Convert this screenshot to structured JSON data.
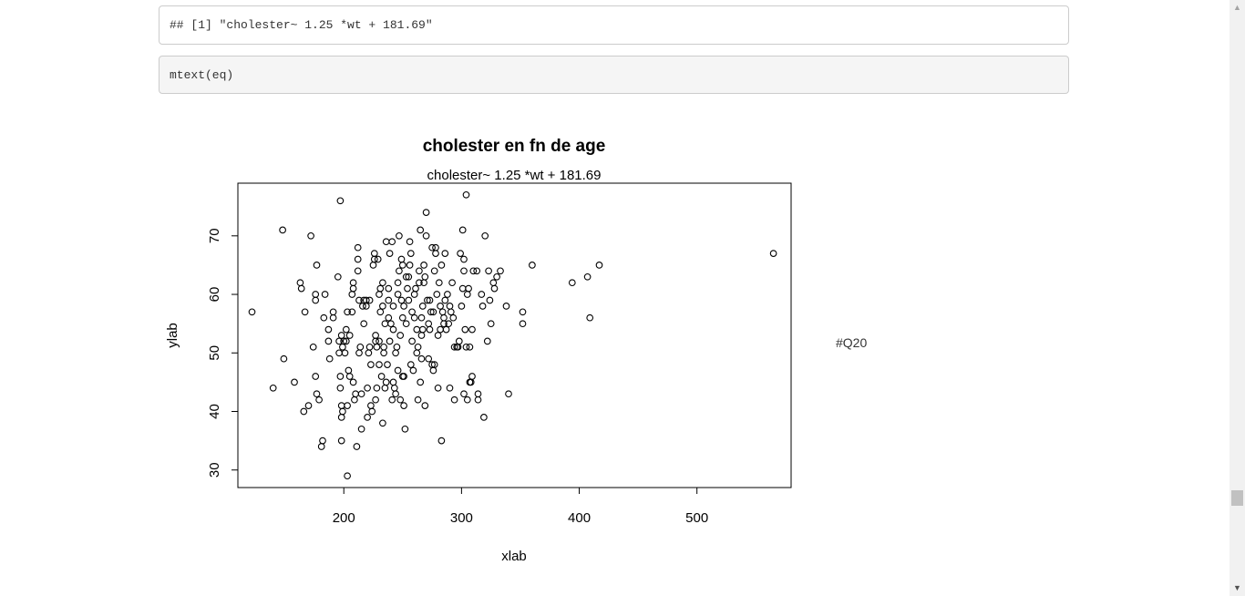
{
  "output_line": "## [1] \"cholester~ 1.25 *wt + 181.69\"",
  "code_line": "mtext(eq)",
  "side_note": "#Q20",
  "chart_data": {
    "type": "scatter",
    "title": "cholester en fn de age",
    "subtitle": "cholester~ 1.25 *wt + 181.69",
    "xlabel": "xlab",
    "ylabel": "ylab",
    "xlim": [
      110,
      580
    ],
    "ylim": [
      27,
      79
    ],
    "x_ticks": [
      200,
      300,
      400,
      500
    ],
    "y_ticks": [
      30,
      40,
      50,
      60,
      70
    ],
    "grid": false,
    "points": [
      [
        122,
        57
      ],
      [
        140,
        44
      ],
      [
        148,
        71
      ],
      [
        149,
        49
      ],
      [
        158,
        45
      ],
      [
        163,
        62
      ],
      [
        164,
        61
      ],
      [
        167,
        57
      ],
      [
        166,
        40
      ],
      [
        170,
        41
      ],
      [
        172,
        70
      ],
      [
        174,
        51
      ],
      [
        176,
        60
      ],
      [
        176,
        59
      ],
      [
        177,
        65
      ],
      [
        176,
        46
      ],
      [
        177,
        43
      ],
      [
        179,
        42
      ],
      [
        183,
        56
      ],
      [
        184,
        60
      ],
      [
        182,
        35
      ],
      [
        181,
        34
      ],
      [
        187,
        52
      ],
      [
        187,
        54
      ],
      [
        188,
        49
      ],
      [
        191,
        57
      ],
      [
        191,
        56
      ],
      [
        195,
        63
      ],
      [
        196,
        52
      ],
      [
        196,
        50
      ],
      [
        197,
        46
      ],
      [
        197,
        76
      ],
      [
        197,
        44
      ],
      [
        198,
        53
      ],
      [
        198,
        41
      ],
      [
        198,
        39
      ],
      [
        199,
        40
      ],
      [
        198,
        35
      ],
      [
        199,
        51
      ],
      [
        200,
        52
      ],
      [
        202,
        52
      ],
      [
        201,
        50
      ],
      [
        202,
        54
      ],
      [
        203,
        41
      ],
      [
        203,
        57
      ],
      [
        203,
        29
      ],
      [
        204,
        47
      ],
      [
        205,
        46
      ],
      [
        205,
        53
      ],
      [
        207,
        57
      ],
      [
        207,
        60
      ],
      [
        208,
        62
      ],
      [
        208,
        61
      ],
      [
        208,
        45
      ],
      [
        209,
        42
      ],
      [
        210,
        43
      ],
      [
        211,
        34
      ],
      [
        212,
        68
      ],
      [
        212,
        66
      ],
      [
        212,
        64
      ],
      [
        213,
        59
      ],
      [
        213,
        50
      ],
      [
        214,
        51
      ],
      [
        215,
        43
      ],
      [
        215,
        37
      ],
      [
        216,
        58
      ],
      [
        217,
        55
      ],
      [
        217,
        59
      ],
      [
        219,
        58
      ],
      [
        219,
        59
      ],
      [
        220,
        44
      ],
      [
        220,
        39
      ],
      [
        221,
        50
      ],
      [
        222,
        59
      ],
      [
        222,
        51
      ],
      [
        223,
        48
      ],
      [
        223,
        41
      ],
      [
        224,
        40
      ],
      [
        225,
        65
      ],
      [
        226,
        66
      ],
      [
        226,
        67
      ],
      [
        227,
        52
      ],
      [
        227,
        53
      ],
      [
        227,
        42
      ],
      [
        228,
        51
      ],
      [
        228,
        44
      ],
      [
        229,
        66
      ],
      [
        230,
        60
      ],
      [
        230,
        52
      ],
      [
        230,
        48
      ],
      [
        231,
        57
      ],
      [
        231,
        61
      ],
      [
        232,
        46
      ],
      [
        233,
        62
      ],
      [
        233,
        58
      ],
      [
        233,
        38
      ],
      [
        234,
        51
      ],
      [
        234,
        50
      ],
      [
        235,
        44
      ],
      [
        235,
        55
      ],
      [
        236,
        69
      ],
      [
        236,
        45
      ],
      [
        237,
        48
      ],
      [
        238,
        56
      ],
      [
        238,
        61
      ],
      [
        238,
        59
      ],
      [
        239,
        67
      ],
      [
        239,
        52
      ],
      [
        240,
        55
      ],
      [
        241,
        42
      ],
      [
        241,
        69
      ],
      [
        242,
        58
      ],
      [
        242,
        54
      ],
      [
        242,
        45
      ],
      [
        243,
        44
      ],
      [
        244,
        50
      ],
      [
        244,
        43
      ],
      [
        245,
        51
      ],
      [
        246,
        47
      ],
      [
        246,
        62
      ],
      [
        246,
        60
      ],
      [
        247,
        70
      ],
      [
        247,
        64
      ],
      [
        248,
        53
      ],
      [
        248,
        42
      ],
      [
        249,
        66
      ],
      [
        249,
        59
      ],
      [
        250,
        65
      ],
      [
        250,
        56
      ],
      [
        250,
        46
      ],
      [
        251,
        46
      ],
      [
        251,
        41
      ],
      [
        251,
        58
      ],
      [
        252,
        37
      ],
      [
        253,
        55
      ],
      [
        253,
        63
      ],
      [
        254,
        61
      ],
      [
        255,
        59
      ],
      [
        255,
        63
      ],
      [
        256,
        69
      ],
      [
        256,
        65
      ],
      [
        257,
        48
      ],
      [
        257,
        67
      ],
      [
        258,
        57
      ],
      [
        258,
        52
      ],
      [
        259,
        47
      ],
      [
        260,
        60
      ],
      [
        260,
        56
      ],
      [
        261,
        61
      ],
      [
        262,
        54
      ],
      [
        262,
        50
      ],
      [
        263,
        51
      ],
      [
        263,
        42
      ],
      [
        264,
        64
      ],
      [
        264,
        62
      ],
      [
        265,
        45
      ],
      [
        265,
        71
      ],
      [
        266,
        56
      ],
      [
        266,
        53
      ],
      [
        266,
        49
      ],
      [
        267,
        58
      ],
      [
        267,
        54
      ],
      [
        268,
        62
      ],
      [
        268,
        65
      ],
      [
        269,
        63
      ],
      [
        269,
        41
      ],
      [
        270,
        70
      ],
      [
        270,
        74
      ],
      [
        271,
        59
      ],
      [
        272,
        55
      ],
      [
        272,
        49
      ],
      [
        273,
        59
      ],
      [
        273,
        54
      ],
      [
        274,
        57
      ],
      [
        275,
        68
      ],
      [
        275,
        48
      ],
      [
        276,
        47
      ],
      [
        276,
        57
      ],
      [
        277,
        48
      ],
      [
        277,
        64
      ],
      [
        278,
        67
      ],
      [
        278,
        68
      ],
      [
        279,
        60
      ],
      [
        280,
        53
      ],
      [
        280,
        44
      ],
      [
        281,
        62
      ],
      [
        282,
        58
      ],
      [
        282,
        54
      ],
      [
        283,
        35
      ],
      [
        283,
        65
      ],
      [
        284,
        57
      ],
      [
        285,
        56
      ],
      [
        285,
        55
      ],
      [
        286,
        67
      ],
      [
        286,
        59
      ],
      [
        287,
        54
      ],
      [
        288,
        60
      ],
      [
        289,
        55
      ],
      [
        290,
        44
      ],
      [
        290,
        58
      ],
      [
        291,
        57
      ],
      [
        292,
        62
      ],
      [
        293,
        56
      ],
      [
        294,
        51
      ],
      [
        294,
        42
      ],
      [
        296,
        51
      ],
      [
        297,
        51
      ],
      [
        298,
        52
      ],
      [
        299,
        67
      ],
      [
        300,
        58
      ],
      [
        301,
        61
      ],
      [
        301,
        71
      ],
      [
        302,
        66
      ],
      [
        302,
        64
      ],
      [
        302,
        43
      ],
      [
        303,
        54
      ],
      [
        304,
        51
      ],
      [
        304,
        77
      ],
      [
        305,
        60
      ],
      [
        305,
        42
      ],
      [
        306,
        61
      ],
      [
        307,
        51
      ],
      [
        307,
        45
      ],
      [
        308,
        45
      ],
      [
        309,
        46
      ],
      [
        309,
        54
      ],
      [
        310,
        64
      ],
      [
        313,
        64
      ],
      [
        314,
        43
      ],
      [
        314,
        42
      ],
      [
        317,
        60
      ],
      [
        318,
        58
      ],
      [
        319,
        39
      ],
      [
        320,
        70
      ],
      [
        322,
        52
      ],
      [
        323,
        64
      ],
      [
        324,
        59
      ],
      [
        325,
        55
      ],
      [
        327,
        62
      ],
      [
        328,
        61
      ],
      [
        330,
        63
      ],
      [
        333,
        64
      ],
      [
        338,
        58
      ],
      [
        340,
        43
      ],
      [
        352,
        57
      ],
      [
        352,
        55
      ],
      [
        360,
        65
      ],
      [
        394,
        62
      ],
      [
        407,
        63
      ],
      [
        409,
        56
      ],
      [
        417,
        65
      ],
      [
        565,
        67
      ]
    ]
  }
}
